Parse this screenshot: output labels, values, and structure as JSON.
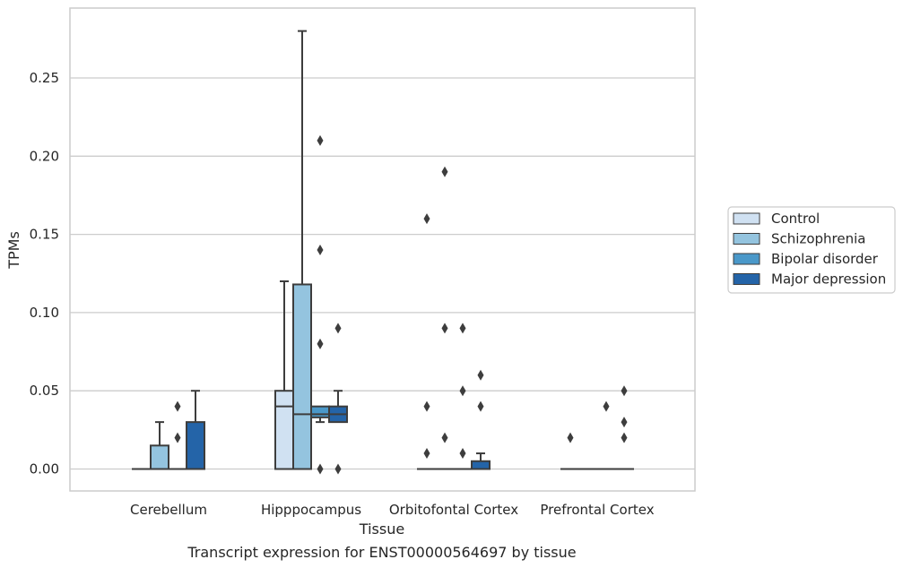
{
  "chart_data": {
    "type": "box",
    "xlabel": "Tissue",
    "ylabel": "TPMs",
    "caption": "Transcript expression for ENST00000564697 by tissue",
    "ylim": [
      -0.014,
      0.294
    ],
    "yticks": [
      "0.00",
      "0.05",
      "0.10",
      "0.15",
      "0.20",
      "0.25"
    ],
    "grid": "horizontal",
    "legend_position": "right",
    "categories": [
      "Cerebellum",
      "Hipppocampus",
      "Orbitofontal Cortex",
      "Prefrontal Cortex"
    ],
    "series": [
      {
        "name": "Control",
        "color": "#d0e1f2",
        "boxes": [
          {
            "q1": 0,
            "median": 0,
            "q3": 0,
            "whisker_low": 0,
            "whisker_high": 0,
            "outliers": []
          },
          {
            "q1": 0,
            "median": 0.04,
            "q3": 0.05,
            "whisker_low": 0,
            "whisker_high": 0.12,
            "outliers": []
          },
          {
            "q1": 0,
            "median": 0,
            "q3": 0,
            "whisker_low": 0,
            "whisker_high": 0,
            "outliers": [
              0.16,
              0.04,
              0.01
            ]
          },
          {
            "q1": 0,
            "median": 0,
            "q3": 0,
            "whisker_low": 0,
            "whisker_high": 0,
            "outliers": [
              0.02
            ]
          }
        ]
      },
      {
        "name": "Schizophrenia",
        "color": "#94c4df",
        "boxes": [
          {
            "q1": 0,
            "median": 0,
            "q3": 0.015,
            "whisker_low": 0,
            "whisker_high": 0.03,
            "outliers": []
          },
          {
            "q1": 0,
            "median": 0.035,
            "q3": 0.118,
            "whisker_low": 0,
            "whisker_high": 0.28,
            "outliers": []
          },
          {
            "q1": 0,
            "median": 0,
            "q3": 0,
            "whisker_low": 0,
            "whisker_high": 0,
            "outliers": [
              0.19,
              0.09,
              0.02
            ]
          },
          {
            "q1": 0,
            "median": 0,
            "q3": 0,
            "whisker_low": 0,
            "whisker_high": 0,
            "outliers": []
          }
        ]
      },
      {
        "name": "Bipolar disorder",
        "color": "#4a98c9",
        "boxes": [
          {
            "q1": 0,
            "median": 0,
            "q3": 0,
            "whisker_low": 0,
            "whisker_high": 0,
            "outliers": [
              0.04,
              0.02
            ]
          },
          {
            "q1": 0.033,
            "median": 0.035,
            "q3": 0.04,
            "whisker_low": 0.03,
            "whisker_high": 0.04,
            "outliers": [
              0.21,
              0.14,
              0.08,
              0
            ]
          },
          {
            "q1": 0,
            "median": 0,
            "q3": 0,
            "whisker_low": 0,
            "whisker_high": 0,
            "outliers": [
              0.09,
              0.05,
              0.01
            ]
          },
          {
            "q1": 0,
            "median": 0,
            "q3": 0,
            "whisker_low": 0,
            "whisker_high": 0,
            "outliers": [
              0.04
            ]
          }
        ]
      },
      {
        "name": "Major depression",
        "color": "#2464a8",
        "boxes": [
          {
            "q1": 0,
            "median": 0,
            "q3": 0.03,
            "whisker_low": 0,
            "whisker_high": 0.05,
            "outliers": []
          },
          {
            "q1": 0.03,
            "median": 0.035,
            "q3": 0.04,
            "whisker_low": 0.03,
            "whisker_high": 0.05,
            "outliers": [
              0.09,
              0
            ]
          },
          {
            "q1": 0,
            "median": 0,
            "q3": 0.005,
            "whisker_low": 0,
            "whisker_high": 0.01,
            "outliers": [
              0.06,
              0.04
            ]
          },
          {
            "q1": 0,
            "median": 0,
            "q3": 0,
            "whisker_low": 0,
            "whisker_high": 0,
            "outliers": [
              0.05,
              0.03,
              0.02
            ]
          }
        ]
      }
    ]
  }
}
